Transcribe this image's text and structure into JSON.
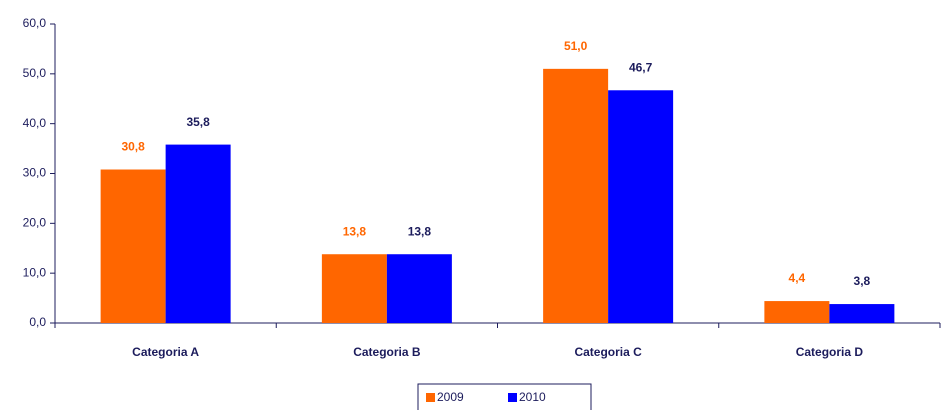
{
  "chart_data": {
    "type": "bar",
    "categories": [
      "Categoria A",
      "Categoria B",
      "Categoria C",
      "Categoria D"
    ],
    "series": [
      {
        "name": "2009",
        "color": "#ff6600",
        "label_color": "#ff6600",
        "values": [
          30.8,
          13.8,
          51.0,
          4.4
        ],
        "value_labels": [
          "30,8",
          "13,8",
          "51,0",
          "4,4"
        ]
      },
      {
        "name": "2010",
        "color": "#0000ff",
        "label_color": "#1c1c5c",
        "values": [
          35.8,
          13.8,
          46.7,
          3.8
        ],
        "value_labels": [
          "35,8",
          "13,8",
          "46,7",
          "3,8"
        ]
      }
    ],
    "ylim": [
      0,
      60
    ],
    "yticks": [
      {
        "value": 0,
        "label": "0,0"
      },
      {
        "value": 10,
        "label": "10,0"
      },
      {
        "value": 20,
        "label": "20,0"
      },
      {
        "value": 30,
        "label": "30,0"
      },
      {
        "value": 40,
        "label": "40,0"
      },
      {
        "value": 50,
        "label": "50,0"
      },
      {
        "value": 60,
        "label": "60,0"
      }
    ],
    "grid": false,
    "legend": "bottom"
  }
}
